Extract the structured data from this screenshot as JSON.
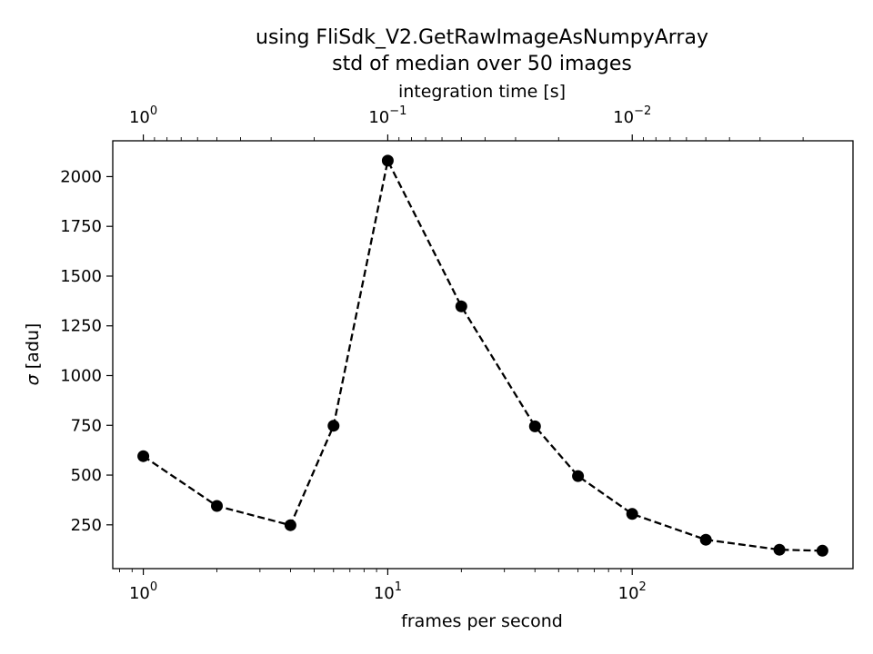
{
  "chart_data": {
    "type": "line",
    "title_line1": "using FliSdk_V2.GetRawImageAsNumpyArray",
    "title_line2": "std of median over 50 images",
    "xlabel": "frames per second",
    "ylabel_symbol": "σ",
    "ylabel_unit": "[adu]",
    "secondary_xlabel": "integration time [s]",
    "xscale": "log",
    "xlim": [
      0.75,
      800
    ],
    "ylim": [
      30,
      2180
    ],
    "grid": false,
    "line_style": "dashed",
    "marker": "circle",
    "color": "#000000",
    "x_ticks": [
      {
        "base": "10",
        "exp": "0"
      },
      {
        "base": "10",
        "exp": "1"
      },
      {
        "base": "10",
        "exp": "2"
      }
    ],
    "y_ticks": [
      "250",
      "500",
      "750",
      "1000",
      "1250",
      "1500",
      "1750",
      "2000"
    ],
    "secondary_x_ticks": [
      {
        "base": "10",
        "exp": "0"
      },
      {
        "base": "10",
        "exp": "−1"
      },
      {
        "base": "10",
        "exp": "−2"
      }
    ],
    "x": [
      1,
      2,
      4,
      6,
      10,
      20,
      40,
      60,
      100,
      200,
      400,
      600
    ],
    "y": [
      595,
      345,
      248,
      748,
      2080,
      1348,
      745,
      495,
      305,
      175,
      125,
      120
    ]
  }
}
